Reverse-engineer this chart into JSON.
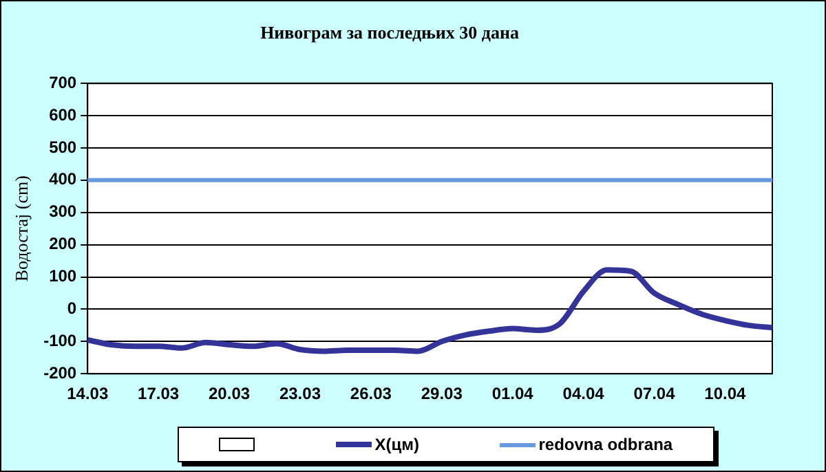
{
  "chart_data": {
    "type": "line",
    "title": "Нивограм за последњих 30 дана",
    "ylabel": "Водостај (cm)",
    "categories": [
      "14.03",
      null,
      null,
      "17.03",
      null,
      null,
      "20.03",
      null,
      null,
      "23.03",
      null,
      null,
      "26.03",
      null,
      null,
      "29.03",
      null,
      null,
      "01.04",
      null,
      null,
      "04.04",
      null,
      null,
      "07.04",
      null,
      null,
      "10.04",
      null,
      null
    ],
    "series": [
      {
        "name": "X(цм)",
        "color": "#333399",
        "values": [
          -95,
          -110,
          -115,
          -115,
          -120,
          -103,
          -110,
          -115,
          -107,
          -125,
          -130,
          -127,
          -127,
          -127,
          -130,
          -100,
          -80,
          -68,
          -60,
          -65,
          -45,
          55,
          122,
          118,
          50,
          15,
          -15,
          -35,
          -50,
          -57
        ]
      }
    ],
    "ref_lines": [
      {
        "axis": "y",
        "value": 400,
        "label": "redovna odbrana",
        "color": "#6699dd"
      }
    ],
    "ylim": [
      -200,
      700
    ],
    "yticks": [
      -200,
      -100,
      0,
      100,
      200,
      300,
      400,
      500,
      600,
      700
    ],
    "grid": "y",
    "legend": "bottom",
    "marker": "none"
  }
}
